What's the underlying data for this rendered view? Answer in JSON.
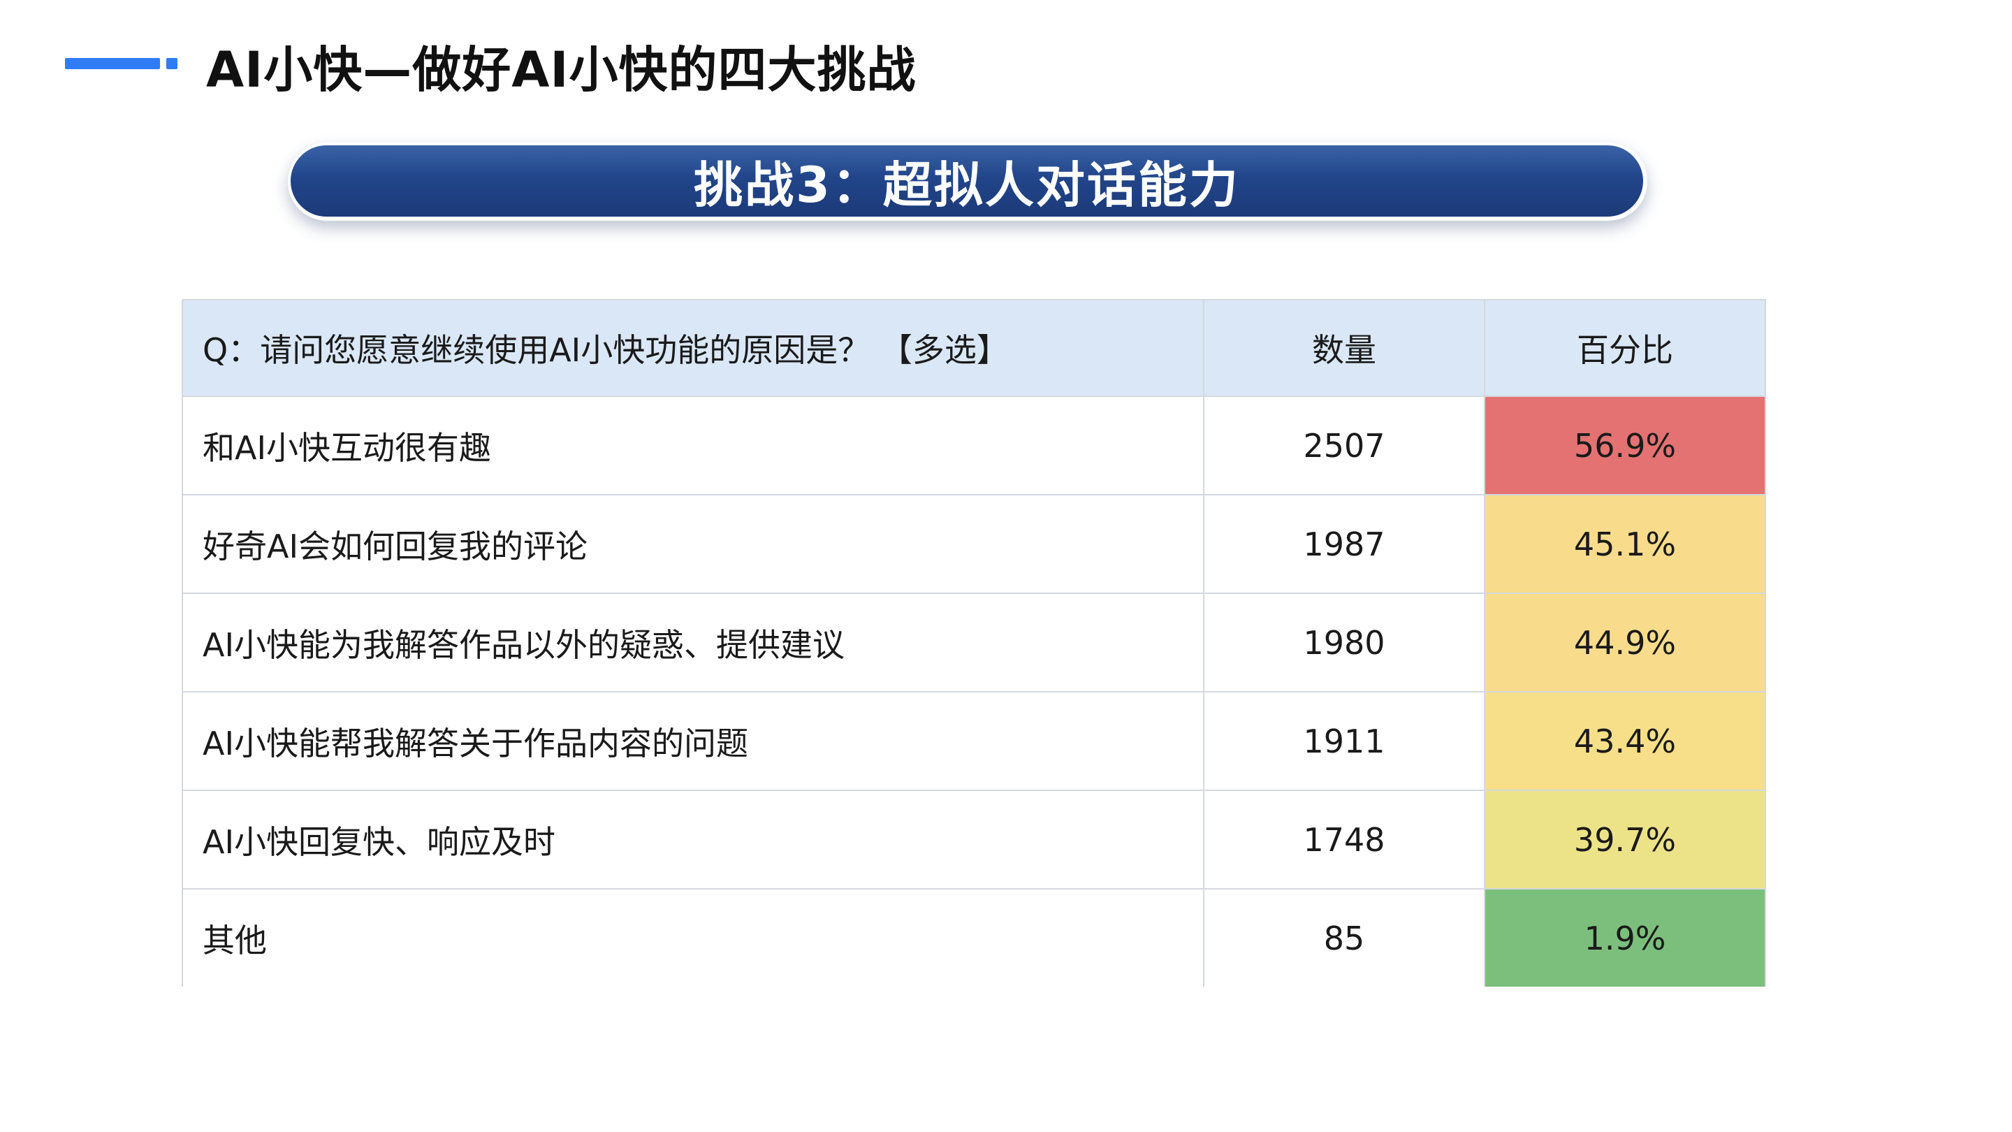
{
  "header": {
    "title": "AI小快—做好AI小快的四大挑战",
    "accent_color": "#2f7cf6"
  },
  "banner": {
    "text": "挑战3：超拟人对话能力",
    "color": "#22458a"
  },
  "table": {
    "headers": {
      "question": "Q：请问您愿意继续使用AI小快功能的原因是？ 【多选】",
      "count": "数量",
      "percent": "百分比"
    },
    "rows": [
      {
        "reason": "和AI小快互动很有趣",
        "count": "2507",
        "percent": "56.9%",
        "color": "#e47272"
      },
      {
        "reason": "好奇AI会如何回复我的评论",
        "count": "1987",
        "percent": "45.1%",
        "color": "#f8dc8c"
      },
      {
        "reason": "AI小快能为我解答作品以外的疑惑、提供建议",
        "count": "1980",
        "percent": "44.9%",
        "color": "#f8dc8c"
      },
      {
        "reason": "AI小快能帮我解答关于作品内容的问题",
        "count": "1911",
        "percent": "43.4%",
        "color": "#f6df88"
      },
      {
        "reason": "AI小快回复快、响应及时",
        "count": "1748",
        "percent": "39.7%",
        "color": "#ece388"
      },
      {
        "reason": "其他",
        "count": "85",
        "percent": "1.9%",
        "color": "#7cbf7c"
      }
    ]
  }
}
